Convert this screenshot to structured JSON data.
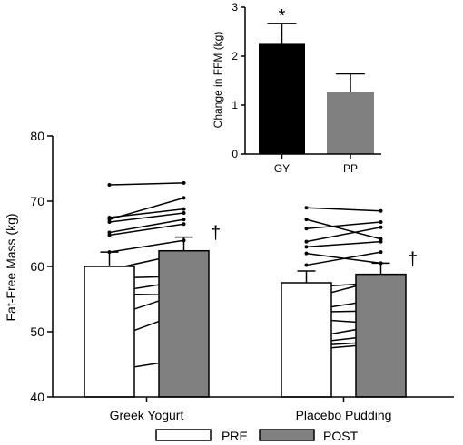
{
  "chart_data": [
    {
      "type": "bar",
      "ylabel": "Fat-Free Mass (kg)",
      "xlabel": "",
      "ylim": [
        40,
        80
      ],
      "yticks": [
        40,
        50,
        60,
        70,
        80
      ],
      "categories": [
        "Greek Yogurt",
        "Placebo Pudding"
      ],
      "series": [
        {
          "name": "PRE",
          "color": "#ffffff",
          "values": [
            60.0,
            57.5
          ],
          "errors": [
            2.2,
            1.8
          ]
        },
        {
          "name": "POST",
          "color": "#808080",
          "values": [
            62.4,
            58.8
          ],
          "errors": [
            2.1,
            1.7
          ]
        }
      ],
      "individuals": [
        {
          "category": "Greek Yogurt",
          "pairs": [
            [
              72.5,
              72.8
            ],
            [
              67.2,
              70.5
            ],
            [
              67.5,
              68.8
            ],
            [
              66.8,
              68.2
            ],
            [
              65.2,
              67.2
            ],
            [
              64.8,
              66.5
            ],
            [
              62.2,
              64.0
            ],
            [
              59.5,
              62.0
            ],
            [
              58.2,
              58.5
            ],
            [
              56.0,
              57.8
            ],
            [
              55.8,
              55.6
            ],
            [
              52.2,
              56.0
            ],
            [
              48.8,
              53.0
            ],
            [
              44.0,
              45.8
            ]
          ]
        },
        {
          "category": "Placebo Pudding",
          "pairs": [
            [
              69.0,
              68.5
            ],
            [
              67.2,
              64.2
            ],
            [
              65.8,
              66.8
            ],
            [
              63.8,
              66.0
            ],
            [
              63.0,
              63.8
            ],
            [
              62.0,
              60.5
            ],
            [
              60.2,
              62.2
            ],
            [
              56.8,
              57.5
            ],
            [
              55.0,
              58.0
            ],
            [
              53.2,
              55.0
            ],
            [
              53.0,
              53.2
            ],
            [
              52.0,
              51.2
            ],
            [
              49.0,
              51.0
            ],
            [
              48.2,
              49.5
            ],
            [
              47.8,
              48.5
            ],
            [
              47.2,
              48.2
            ]
          ]
        }
      ],
      "annotations": {
        "gy_post": "†",
        "pp_post": "†"
      },
      "legend": {
        "position": "bottom",
        "pre": "PRE",
        "post": "POST"
      }
    },
    {
      "type": "bar",
      "ylabel": "Change in FFM (kg)",
      "xlabel": "",
      "ylim": [
        0,
        3
      ],
      "yticks": [
        0,
        1,
        2,
        3
      ],
      "categories": [
        "GY",
        "PP"
      ],
      "values": [
        2.27,
        1.27
      ],
      "errors": [
        0.4,
        0.37
      ],
      "colors": [
        "#000000",
        "#808080"
      ],
      "annotation": "*"
    }
  ]
}
